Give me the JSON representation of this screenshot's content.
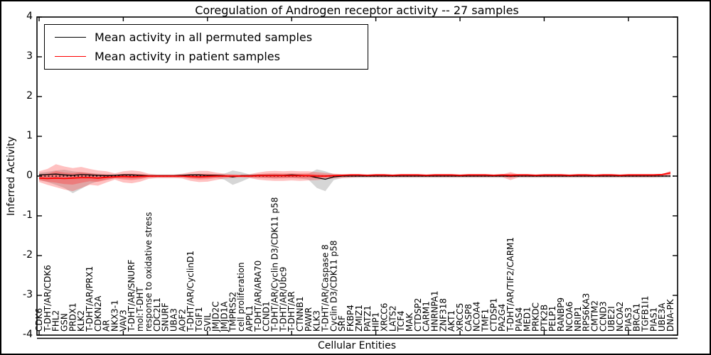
{
  "chart_data": {
    "type": "line",
    "title": "Coregulation of Androgen receptor activity -- 27 samples",
    "xlabel": "Cellular Entities",
    "ylabel": "Inferred Activity",
    "ylim": [
      -4,
      4
    ],
    "yticks": [
      4,
      3,
      2,
      1,
      0,
      -1,
      -2,
      -3,
      -4
    ],
    "legend_position": "upper left",
    "grid": false,
    "zero_line": {
      "y": 0,
      "color": "#000000",
      "style": "dotted"
    },
    "inner_band_scale": 0.5,
    "categories": [
      "CDK6",
      "T-DHT/AR/CDK6",
      "FHL2",
      "GSN",
      "PRDX1",
      "KLK2",
      "T-DHT/AR/PRX1",
      "CDKN2A",
      "AR",
      "NKX3-1",
      "VAV3",
      "T-DHT/AR/SNURF",
      "mol:T-DHT",
      "response to oxidative stress",
      "CDC2L1",
      "SNURF",
      "UBA3",
      "AOF2",
      "T-DHT/AR/CyclinD1",
      "TGIF1",
      "SVIL",
      "JMJD2C",
      "JMJD1A",
      "TMPRSS2",
      "cell proliferation",
      "APPL1",
      "T-DHT/AR/ARA70",
      "CCND1",
      "T-DHT/AR/Cyclin D3/CDK11 p58",
      "T-DHT/AR/Ubc9",
      "T-DHT/AR",
      "CTNNB1",
      "PAWR",
      "KLK3",
      "T-DHT/AR/Caspase 8",
      "Cyclin D3/CDK11 p58",
      "SRF",
      "FKBP4",
      "ZMIZ1",
      "PATZ1",
      "HIP1",
      "XRCC6",
      "LATS2",
      "TCF4",
      "MAK",
      "CTDSP2",
      "CARM1",
      "HNRNPA1",
      "ZNF318",
      "AKT1",
      "XRCC5",
      "CASP8",
      "NCOA4",
      "TMF1",
      "CTDSP1",
      "PA2G4",
      "T-DHT/AR/TIF2/CARM1",
      "PIAS4",
      "MED1",
      "PRKDC",
      "PTK2B",
      "PELP1",
      "RANBP9",
      "NCOA6",
      "NRIP1",
      "RPS6KA3",
      "CMTM2",
      "CCND3",
      "UBE2I",
      "NCOA2",
      "PIAS3",
      "BRCA1",
      "TGFB1I1",
      "PIAS1",
      "UBE3A",
      "DNA-PK"
    ],
    "series": [
      {
        "name": "Mean activity in all permuted samples",
        "color": "#000000",
        "values": [
          0.03,
          0.04,
          0.05,
          0.03,
          0.02,
          0.04,
          0.03,
          0.02,
          0.01,
          0.02,
          0.03,
          0.03,
          0.02,
          0.01,
          0.01,
          0.01,
          0.01,
          0.02,
          0.03,
          0.03,
          0.02,
          0.02,
          0.01,
          -0.02,
          0.01,
          0.01,
          0.02,
          0.02,
          0.02,
          0.02,
          0.03,
          0.02,
          0.01,
          -0.04,
          -0.08,
          -0.02,
          0,
          0,
          0,
          0,
          0,
          0,
          0,
          0,
          0,
          0,
          0,
          0,
          0,
          0,
          0,
          0,
          0,
          0,
          0,
          0,
          0,
          0,
          0,
          0,
          0,
          0,
          0,
          0,
          0,
          0,
          0,
          0,
          0,
          0,
          0,
          0,
          0,
          0,
          0,
          0
        ]
      },
      {
        "name": "Mean activity in patient samples",
        "color": "#ff0000",
        "values": [
          -0.05,
          -0.06,
          -0.05,
          -0.06,
          -0.05,
          -0.04,
          -0.04,
          -0.05,
          -0.03,
          -0.02,
          -0.01,
          -0.02,
          -0.01,
          0,
          0,
          0,
          0,
          0,
          -0.01,
          -0.02,
          -0.01,
          0,
          0,
          0,
          0,
          0,
          0.01,
          0.01,
          0.01,
          0.01,
          0.01,
          0.01,
          0.01,
          0,
          0,
          0.01,
          0.02,
          0.03,
          0.03,
          0.02,
          0.03,
          0.03,
          0.02,
          0.03,
          0.03,
          0.03,
          0.02,
          0.03,
          0.03,
          0.03,
          0.02,
          0.03,
          0.03,
          0.03,
          0.02,
          0.03,
          0.02,
          0.03,
          0.03,
          0.02,
          0.03,
          0.03,
          0.03,
          0.02,
          0.03,
          0.03,
          0.02,
          0.03,
          0.03,
          0.02,
          0.03,
          0.03,
          0.03,
          0.03,
          0.04,
          0.08
        ]
      }
    ],
    "bands": [
      {
        "name": "permuted-samples-range",
        "fill": "#999999",
        "opacity": 0.4,
        "upper": [
          0.08,
          0.11,
          0.14,
          0.16,
          0.12,
          0.1,
          0.08,
          0.06,
          0.05,
          0.04,
          0.05,
          0.05,
          0.04,
          0.03,
          0.03,
          0.03,
          0.03,
          0.03,
          0.04,
          0.05,
          0.04,
          0.04,
          0.06,
          0.14,
          0.1,
          0.04,
          0.04,
          0.04,
          0.05,
          0.04,
          0.04,
          0.05,
          0.06,
          0.17,
          0.12,
          0.05,
          0.04,
          0.03,
          0.03,
          0.03,
          0.03,
          0.03,
          0.03,
          0.03,
          0.03,
          0.03,
          0.03,
          0.03,
          0.03,
          0.03,
          0.03,
          0.03,
          0.03,
          0.03,
          0.03,
          0.03,
          0.03,
          0.03,
          0.03,
          0.03,
          0.03,
          0.03,
          0.03,
          0.03,
          0.03,
          0.03,
          0.03,
          0.03,
          0.03,
          0.03,
          0.03,
          0.03,
          0.03,
          0.03,
          0.03,
          0.03
        ],
        "lower": [
          -0.1,
          -0.15,
          -0.22,
          -0.3,
          -0.43,
          -0.32,
          -0.2,
          -0.13,
          -0.09,
          -0.06,
          -0.06,
          -0.07,
          -0.06,
          -0.04,
          -0.04,
          -0.04,
          -0.04,
          -0.04,
          -0.05,
          -0.06,
          -0.05,
          -0.05,
          -0.09,
          -0.22,
          -0.14,
          -0.05,
          -0.05,
          -0.05,
          -0.06,
          -0.05,
          -0.05,
          -0.06,
          -0.09,
          -0.3,
          -0.38,
          -0.1,
          -0.05,
          -0.04,
          -0.04,
          -0.04,
          -0.04,
          -0.04,
          -0.04,
          -0.04,
          -0.04,
          -0.04,
          -0.04,
          -0.04,
          -0.04,
          -0.04,
          -0.04,
          -0.04,
          -0.04,
          -0.04,
          -0.04,
          -0.04,
          -0.04,
          -0.04,
          -0.04,
          -0.04,
          -0.04,
          -0.04,
          -0.04,
          -0.04,
          -0.04,
          -0.04,
          -0.04,
          -0.04,
          -0.04,
          -0.04,
          -0.04,
          -0.04,
          -0.04,
          -0.04,
          -0.04,
          -0.04
        ]
      },
      {
        "name": "patient-samples-range",
        "fill": "#ff3333",
        "opacity": 0.3,
        "upper": [
          0.12,
          0.18,
          0.3,
          0.24,
          0.2,
          0.23,
          0.18,
          0.14,
          0.12,
          0.07,
          0.12,
          0.14,
          0.12,
          0.06,
          0.04,
          0.04,
          0.04,
          0.06,
          0.1,
          0.13,
          0.13,
          0.09,
          0.06,
          0.05,
          0.04,
          0.05,
          0.09,
          0.12,
          0.13,
          0.12,
          0.13,
          0.12,
          0.12,
          0.1,
          0.08,
          0.06,
          0.05,
          0.04,
          0.04,
          0.04,
          0.04,
          0.04,
          0.04,
          0.04,
          0.04,
          0.04,
          0.04,
          0.04,
          0.04,
          0.04,
          0.04,
          0.04,
          0.04,
          0.04,
          0.04,
          0.04,
          0.1,
          0.04,
          0.04,
          0.04,
          0.04,
          0.04,
          0.04,
          0.04,
          0.04,
          0.04,
          0.04,
          0.04,
          0.04,
          0.04,
          0.04,
          0.04,
          0.04,
          0.04,
          0.05,
          0.13
        ],
        "lower": [
          -0.15,
          -0.22,
          -0.28,
          -0.34,
          -0.38,
          -0.3,
          -0.22,
          -0.24,
          -0.16,
          -0.09,
          -0.16,
          -0.18,
          -0.14,
          -0.07,
          -0.05,
          -0.05,
          -0.05,
          -0.06,
          -0.12,
          -0.15,
          -0.14,
          -0.1,
          -0.06,
          -0.05,
          -0.04,
          -0.05,
          -0.09,
          -0.11,
          -0.12,
          -0.12,
          -0.11,
          -0.12,
          -0.11,
          -0.1,
          -0.08,
          -0.06,
          -0.05,
          -0.04,
          -0.03,
          -0.03,
          -0.03,
          -0.03,
          -0.03,
          -0.03,
          -0.03,
          -0.03,
          -0.03,
          -0.03,
          -0.03,
          -0.03,
          -0.03,
          -0.03,
          -0.03,
          -0.03,
          -0.03,
          -0.03,
          -0.1,
          -0.03,
          -0.03,
          -0.03,
          -0.03,
          -0.03,
          -0.03,
          -0.03,
          -0.03,
          -0.03,
          -0.03,
          -0.03,
          -0.03,
          -0.03,
          -0.03,
          -0.03,
          -0.03,
          -0.03,
          -0.02,
          0.0
        ]
      }
    ]
  }
}
